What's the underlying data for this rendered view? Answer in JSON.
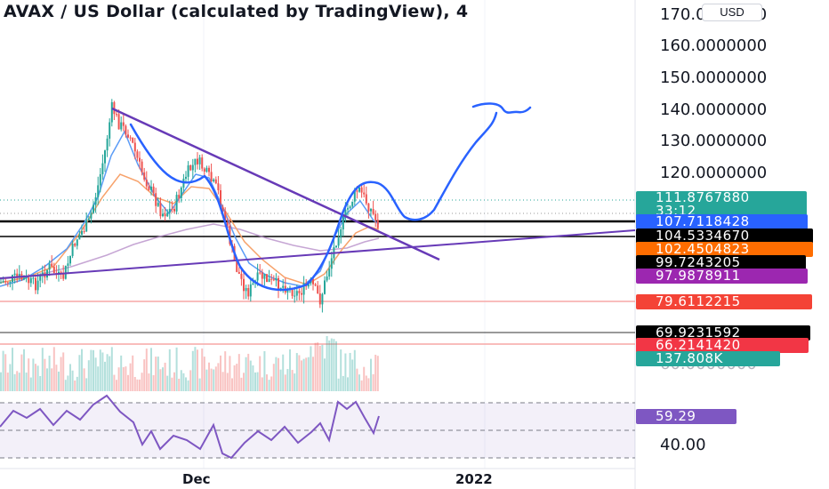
{
  "header": {
    "title": "AVAX / US Dollar (calculated by TradingView), 4",
    "currency": "USD"
  },
  "price_axis": {
    "labels": [
      "170.0000000",
      "160.0000000",
      "150.0000000",
      "140.0000000",
      "130.0000000",
      "120.0000000"
    ],
    "faint_labels": [
      "60.0000000"
    ]
  },
  "price_tags": [
    {
      "label": "111.8767880",
      "sublabel": "33:12",
      "color": "#26a69a"
    },
    {
      "label": "107.7118428",
      "color": "#2962ff"
    },
    {
      "label": "104.5334670",
      "color": "#000000"
    },
    {
      "label": "102.4504823",
      "color": "#ff6d00"
    },
    {
      "label": "99.7243205",
      "color": "#000000"
    },
    {
      "label": "97.9878911",
      "color": "#9c27b0"
    },
    {
      "label": "79.6112215",
      "color": "#f44336"
    },
    {
      "label": "69.9231592",
      "color": "#000000"
    },
    {
      "label": "66.2141420",
      "color": "#f23645"
    },
    {
      "label": "137.808K",
      "color": "#26a69a"
    }
  ],
  "rsi_panel": {
    "value": "59.29",
    "value_color": "#7e57c2",
    "axis_label": "40.00"
  },
  "time_axis": {
    "labels": [
      "Dec",
      "2022"
    ]
  },
  "colors": {
    "up": "#26a69a",
    "down": "#ef5350",
    "trendline": "#673ab7",
    "drawing": "#2962ff",
    "ma_fast": "#5b9cf6",
    "ma_slow": "#f7a26b",
    "ma_long": "#b388c6",
    "rsi": "#7e57c2"
  }
}
